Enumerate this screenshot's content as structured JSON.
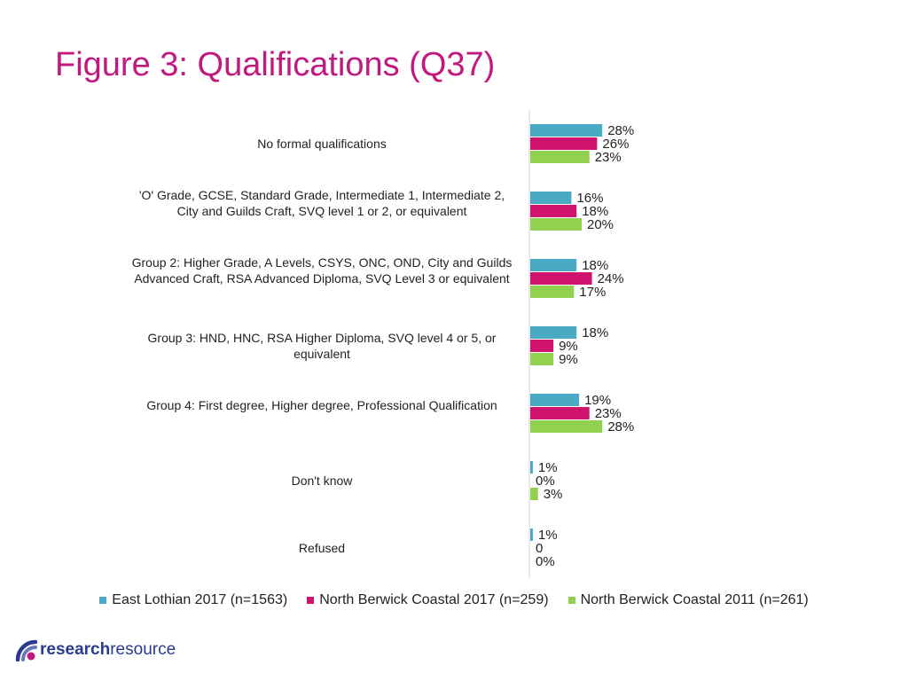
{
  "page": {
    "title": "Figure 3: Qualifications (Q37)"
  },
  "colors": {
    "title": "#c0197f",
    "east_lothian_2017": "#4aaac4",
    "nbc_2017": "#d0136c",
    "nbc_2011": "#92d050",
    "brand_navy": "#2b3b8f",
    "brand_magenta": "#c0197f"
  },
  "chart_data": {
    "type": "bar",
    "orientation": "horizontal",
    "title": "Figure 3: Qualifications (Q37)",
    "categories": [
      "No formal qualifications",
      "'O' Grade, GCSE, Standard Grade, Intermediate 1, Intermediate 2, City and Guilds Craft, SVQ level 1 or 2, or equivalent",
      "Group 2: Higher Grade, A Levels, CSYS, ONC, OND, City and Guilds Advanced Craft, RSA Advanced Diploma, SVQ Level 3 or equivalent",
      "Group 3: HND, HNC, RSA Higher Diploma, SVQ level 4 or 5, or equivalent",
      "Group 4: First degree, Higher degree, Professional Qualification",
      "Don't know",
      "Refused"
    ],
    "series": [
      {
        "name": "East Lothian 2017 (n=1563)",
        "color": "#4aaac4",
        "values": [
          28,
          16,
          18,
          18,
          19,
          1,
          1
        ],
        "labels": [
          "28%",
          "16%",
          "18%",
          "18%",
          "19%",
          "1%",
          "1%"
        ]
      },
      {
        "name": "North Berwick Coastal 2017 (n=259)",
        "color": "#d0136c",
        "values": [
          26,
          18,
          24,
          9,
          23,
          0,
          0
        ],
        "labels": [
          "26%",
          "18%",
          "24%",
          "9%",
          "23%",
          "0%",
          "0"
        ]
      },
      {
        "name": "North Berwick Coastal 2011 (n=261)",
        "color": "#92d050",
        "values": [
          23,
          20,
          17,
          9,
          28,
          3,
          0
        ],
        "labels": [
          "23%",
          "20%",
          "17%",
          "9%",
          "28%",
          "3%",
          "0%"
        ]
      }
    ],
    "xlim": [
      0,
      100
    ],
    "grid": false,
    "legend_position": "bottom"
  },
  "logo": {
    "part1": "research",
    "part2": "resource"
  }
}
